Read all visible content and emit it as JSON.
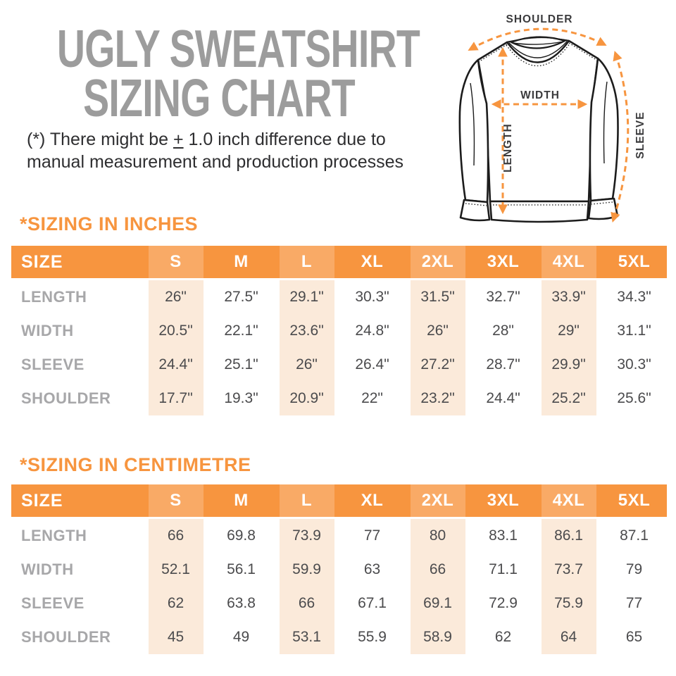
{
  "page": {
    "title_line1": "UGLY SWEATSHIRT",
    "title_line2": "SIZING CHART",
    "disclaimer": {
      "line1_prefix": "(*) There might be ",
      "plus_minus": "+",
      "line1_suffix": " 1.0 inch difference due to",
      "line2": "manual measurement and production processes"
    }
  },
  "diagram": {
    "labels": {
      "shoulder": "SHOULDER",
      "width": "WIDTH",
      "length": "LENGTH",
      "sleeve": "SLEEVE"
    }
  },
  "colors": {
    "orange": "#F7953F",
    "orange_light": "#F9AA66",
    "peach": "#FBEADA",
    "title_gray": "#9C9C9C",
    "label_gray": "#A7A7A9",
    "text_dark": "#2E2E30",
    "value_gray": "#4B4B4D"
  },
  "tables": [
    {
      "id": "inches",
      "section_title": "*SIZING IN INCHES",
      "header": [
        "SIZE",
        "S",
        "M",
        "L",
        "XL",
        "2XL",
        "3XL",
        "4XL",
        "5XL"
      ],
      "rows": [
        {
          "label": "LENGTH",
          "values": [
            "26\"",
            "27.5\"",
            "29.1\"",
            "30.3\"",
            "31.5\"",
            "32.7\"",
            "33.9\"",
            "34.3\""
          ]
        },
        {
          "label": "WIDTH",
          "values": [
            "20.5\"",
            "22.1\"",
            "23.6\"",
            "24.8\"",
            "26\"",
            "28\"",
            "29\"",
            "31.1\""
          ]
        },
        {
          "label": "SLEEVE",
          "values": [
            "24.4\"",
            "25.1\"",
            "26\"",
            "26.4\"",
            "27.2\"",
            "28.7\"",
            "29.9\"",
            "30.3\""
          ]
        },
        {
          "label": "SHOULDER",
          "values": [
            "17.7\"",
            "19.3\"",
            "20.9\"",
            "22\"",
            "23.2\"",
            "24.4\"",
            "25.2\"",
            "25.6\""
          ]
        }
      ]
    },
    {
      "id": "centimetre",
      "section_title": "*SIZING IN CENTIMETRE",
      "header": [
        "SIZE",
        "S",
        "M",
        "L",
        "XL",
        "2XL",
        "3XL",
        "4XL",
        "5XL"
      ],
      "rows": [
        {
          "label": "LENGTH",
          "values": [
            "66",
            "69.8",
            "73.9",
            "77",
            "80",
            "83.1",
            "86.1",
            "87.1"
          ]
        },
        {
          "label": "WIDTH",
          "values": [
            "52.1",
            "56.1",
            "59.9",
            "63",
            "66",
            "71.1",
            "73.7",
            "79"
          ]
        },
        {
          "label": "SLEEVE",
          "values": [
            "62",
            "63.8",
            "66",
            "67.1",
            "69.1",
            "72.9",
            "75.9",
            "77"
          ]
        },
        {
          "label": "SHOULDER",
          "values": [
            "45",
            "49",
            "53.1",
            "55.9",
            "58.9",
            "62",
            "64",
            "65"
          ]
        }
      ]
    }
  ]
}
